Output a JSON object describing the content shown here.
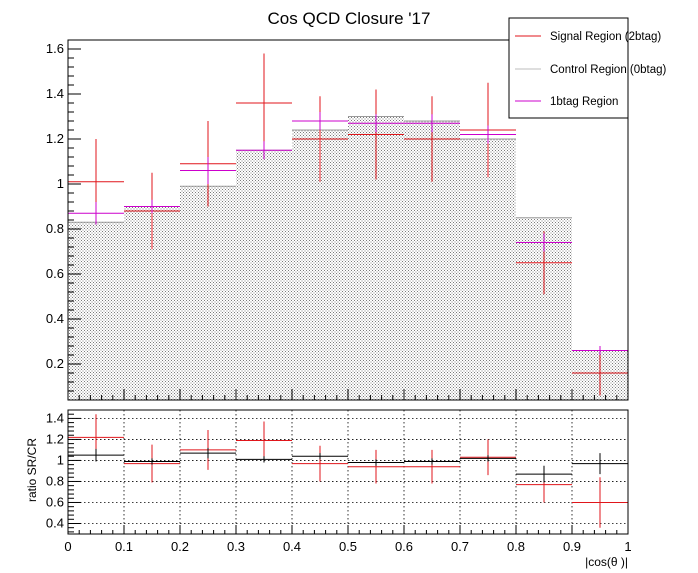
{
  "chart_data": [
    {
      "type": "bar",
      "title": "Cos QCD Closure '17",
      "xlabel": "",
      "ylabel": "",
      "xlim": [
        0,
        1
      ],
      "ylim": [
        0.04,
        1.64
      ],
      "bin_edges": [
        0,
        0.1,
        0.2,
        0.3,
        0.4,
        0.5,
        0.6,
        0.7,
        0.8,
        0.9,
        1.0
      ],
      "xticks": [
        "0",
        "0.1",
        "0.2",
        "0.3",
        "0.4",
        "0.5",
        "0.6",
        "0.7",
        "0.8",
        "0.9",
        "1"
      ],
      "yticks": [
        "0.2",
        "0.4",
        "0.6",
        "0.8",
        "1",
        "1.2",
        "1.4",
        "1.6"
      ],
      "legend_position": "top-right",
      "series": [
        {
          "name": "Signal Region (2btag)",
          "style": "error-cross",
          "color": "#e0161b",
          "values": [
            1.01,
            0.88,
            1.09,
            1.36,
            1.2,
            1.22,
            1.2,
            1.24,
            0.65,
            0.16
          ],
          "errors": [
            0.19,
            0.17,
            0.19,
            0.22,
            0.19,
            0.2,
            0.19,
            0.21,
            0.14,
            0.1
          ]
        },
        {
          "name": "Control Region (0btag)",
          "style": "hatched-fill",
          "color": "#888888",
          "values": [
            0.83,
            0.9,
            0.99,
            1.15,
            1.24,
            1.3,
            1.28,
            1.2,
            0.85,
            0.26
          ]
        },
        {
          "name": "1btag Region",
          "style": "error-cross",
          "color": "#cc00cc",
          "values": [
            0.87,
            0.9,
            1.06,
            1.15,
            1.28,
            1.27,
            1.27,
            1.22,
            0.74,
            0.26
          ],
          "errors": [
            0.05,
            0.03,
            0.06,
            0.04,
            0.04,
            0.04,
            0.04,
            0.04,
            0.04,
            0.02
          ]
        }
      ]
    },
    {
      "type": "bar",
      "title": "",
      "xlabel": "|cos(θ )|",
      "ylabel": "ratio SR/CR",
      "xlim": [
        0,
        1
      ],
      "ylim": [
        0.3,
        1.48
      ],
      "bin_edges": [
        0,
        0.1,
        0.2,
        0.3,
        0.4,
        0.5,
        0.6,
        0.7,
        0.8,
        0.9,
        1.0
      ],
      "xticks": [
        "0",
        "0.1",
        "0.2",
        "0.3",
        "0.4",
        "0.5",
        "0.6",
        "0.7",
        "0.8",
        "0.9",
        "1"
      ],
      "yticks": [
        "0.4",
        "0.6",
        "0.8",
        "1",
        "1.2",
        "1.4"
      ],
      "grid": true,
      "series": [
        {
          "style": "error-cross",
          "color": "#e0161b",
          "values": [
            1.22,
            0.97,
            1.1,
            1.19,
            0.97,
            0.94,
            0.94,
            1.03,
            0.77,
            0.6
          ],
          "errors": [
            0.22,
            0.18,
            0.19,
            0.18,
            0.17,
            0.16,
            0.16,
            0.17,
            0.17,
            0.24
          ]
        },
        {
          "style": "error-cross",
          "color": "#000000",
          "values": [
            1.05,
            0.99,
            1.07,
            1.01,
            1.04,
            0.98,
            0.99,
            1.02,
            0.87,
            0.97
          ],
          "errors": [
            0.06,
            0.03,
            0.05,
            0.03,
            0.03,
            0.03,
            0.03,
            0.03,
            0.08,
            0.1
          ]
        }
      ]
    }
  ]
}
